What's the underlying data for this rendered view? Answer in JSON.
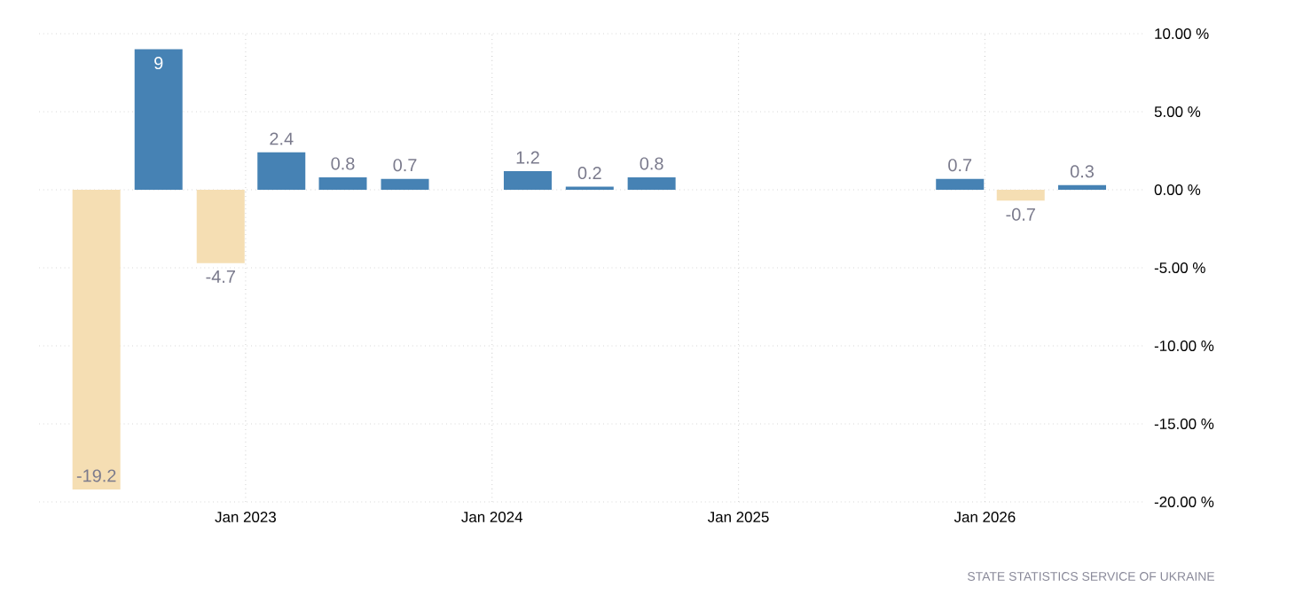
{
  "chart_data": {
    "type": "bar",
    "x": [
      "2022-05-25",
      "2022-08-25",
      "2022-11-25",
      "2023-02-23",
      "2023-05-25",
      "2023-08-25",
      "2024-02-23",
      "2024-05-25",
      "2024-08-25",
      "2025-11-25",
      "2026-02-23",
      "2026-05-25"
    ],
    "values": [
      -19.2,
      9,
      -4.7,
      2.4,
      0.8,
      0.7,
      1.2,
      0.2,
      0.8,
      0.7,
      -0.7,
      0.3
    ],
    "colors": [
      "#f5deb3",
      "#4682b4",
      "#f5deb3",
      "#4682b4",
      "#4682b4",
      "#4682b4",
      "#4682b4",
      "#4682b4",
      "#4682b4",
      "#4682b4",
      "#f5deb3",
      "#4682b4"
    ],
    "data_labels": true,
    "xlim": [
      "2022-03-01",
      "2026-08-25"
    ],
    "xticks": [
      {
        "value": "2023-01-01",
        "label": "Jan 2023"
      },
      {
        "value": "2024-01-01",
        "label": "Jan 2024"
      },
      {
        "value": "2025-01-01",
        "label": "Jan 2025"
      },
      {
        "value": "2026-01-01",
        "label": "Jan 2026"
      }
    ],
    "ylim": [
      -20,
      10
    ],
    "yticks": [
      {
        "value": 10,
        "label": "10.00 %"
      },
      {
        "value": 5,
        "label": "5.00 %"
      },
      {
        "value": 0,
        "label": "0.00 %"
      },
      {
        "value": -5,
        "label": "-5.00 %"
      },
      {
        "value": -10,
        "label": "-10.00 %"
      },
      {
        "value": -15,
        "label": "-15.00 %"
      },
      {
        "value": -20,
        "label": "-20.00 %"
      }
    ],
    "grid": true,
    "annotations": [
      "STATE STATISTICS SERVICE OF UKRAINE"
    ]
  }
}
